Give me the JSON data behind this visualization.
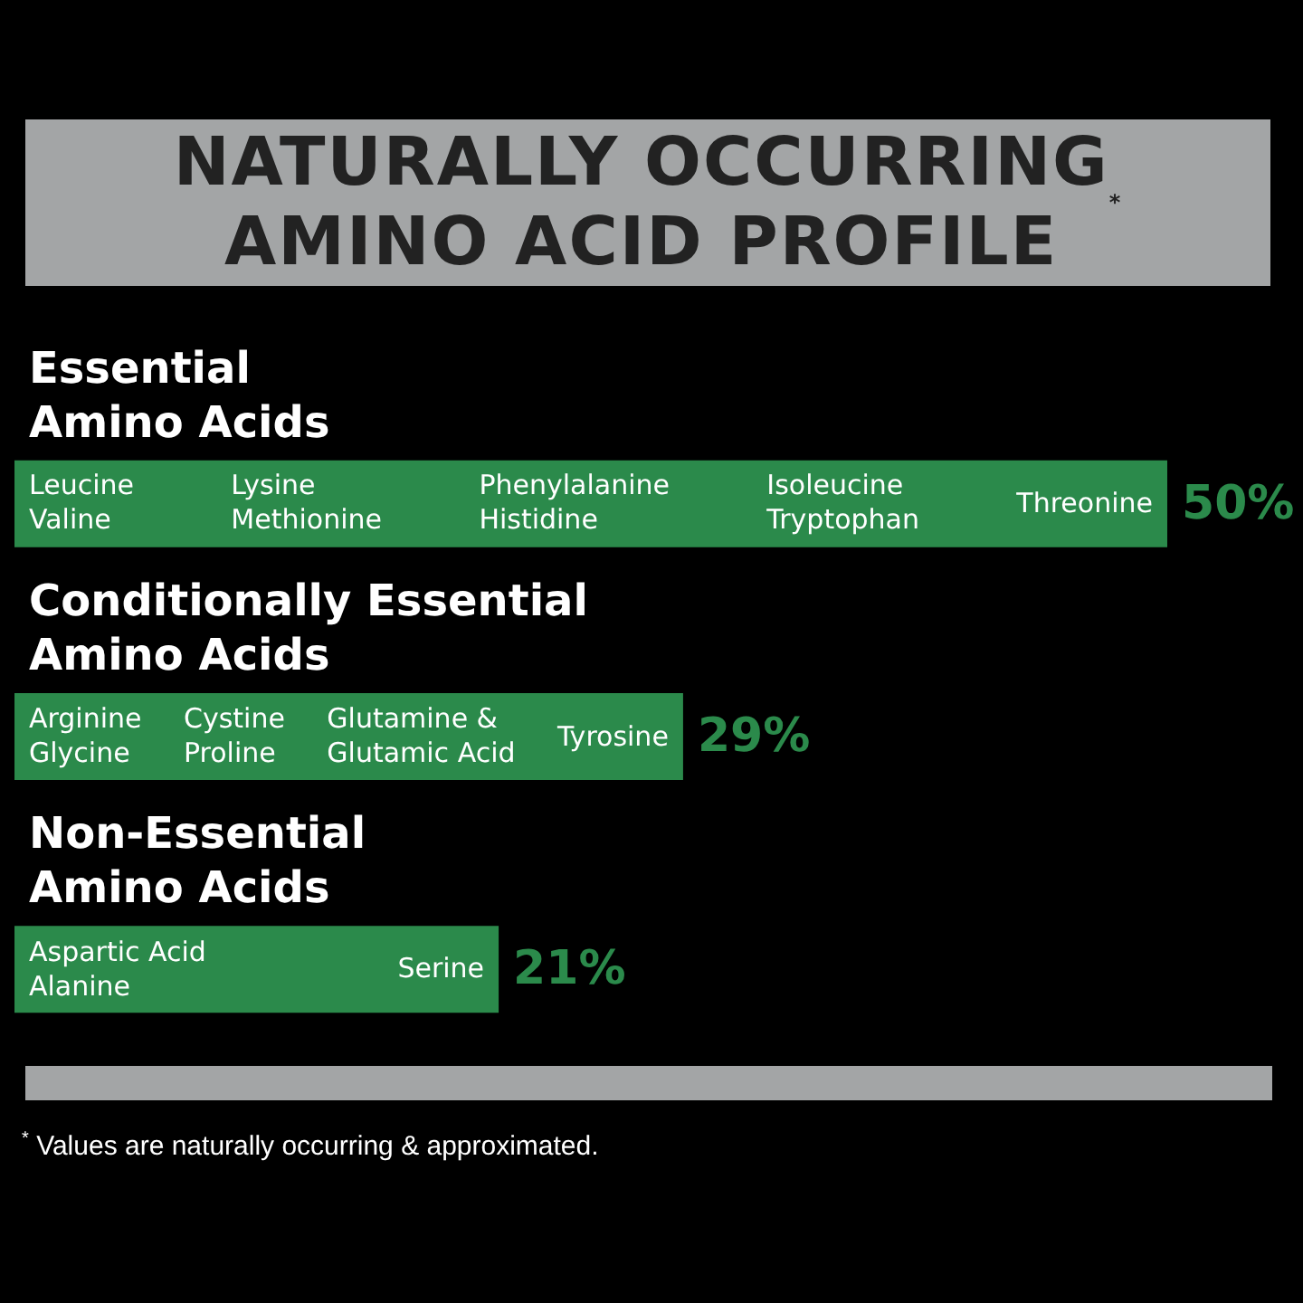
{
  "chart_data": {
    "type": "bar",
    "orientation": "horizontal",
    "title": "NATURALLY OCCURRING\nAMINO ACID PROFILE$^{*}$",
    "categories": [
      "Essential\nAmino Acids",
      "Conditionally Essential\nAmino Acids",
      "Non-Essential\nAmino Acids"
    ],
    "values": [
      50,
      29,
      21
    ],
    "color": "#2b8a4b",
    "value_labels": [
      "50%",
      "29%",
      "21%"
    ],
    "annotations": [
      "Leucine\nValine\tLysine\nMethionine\tPhenylalanine\nHistidine\tIsoleucine\nTryptophan\tThreonine",
      "Arginine\nGlycine\tCystine\nProline\tGlutamine &\nGlutamic Acid\tTyrosine",
      "Aspartic Acid\nAlanine\tSerine",
      "$^{*}$ Values are naturally occurring & approximated."
    ]
  }
}
